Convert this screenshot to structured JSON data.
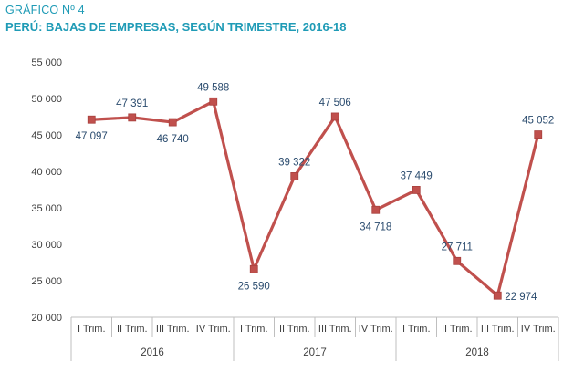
{
  "header": {
    "kicker": "GRÁFICO Nº 4",
    "title": "PERÚ: BAJAS DE EMPRESAS, SEGÚN TRIMESTRE, 2016-18"
  },
  "chart_data": {
    "type": "line",
    "title": "PERÚ: BAJAS DE EMPRESAS, SEGÚN TRIMESTRE, 2016-18",
    "categories": [
      "I Trim.",
      "II Trim.",
      "III Trim.",
      "IV Trim.",
      "I Trim.",
      "II Trim.",
      "III Trim.",
      "IV Trim.",
      "I Trim.",
      "II Trim.",
      "III Trim.",
      "IV Trim."
    ],
    "groups": [
      {
        "label": "2016",
        "count": 4
      },
      {
        "label": "2017",
        "count": 4
      },
      {
        "label": "2018",
        "count": 4
      }
    ],
    "values": [
      47097,
      47391,
      46740,
      49588,
      26590,
      39322,
      47506,
      34718,
      37449,
      27711,
      22974,
      45052
    ],
    "value_labels": [
      "47 097",
      "47 391",
      "46 740",
      "49 588",
      "26 590",
      "39 322",
      "47 506",
      "34 718",
      "37 449",
      "27 711",
      "22 974",
      "45 052"
    ],
    "label_positions": [
      "below",
      "above",
      "below",
      "above",
      "below",
      "above",
      "above",
      "below",
      "above",
      "above",
      "right",
      "above"
    ],
    "yticks": [
      20000,
      25000,
      30000,
      35000,
      40000,
      45000,
      50000,
      55000
    ],
    "ytick_labels": [
      "20 000",
      "25 000",
      "30 000",
      "35 000",
      "40 000",
      "45 000",
      "50 000",
      "55 000"
    ],
    "ylim": [
      20000,
      55000
    ],
    "grid": false,
    "legend": false,
    "line_color": "#c0504d"
  }
}
